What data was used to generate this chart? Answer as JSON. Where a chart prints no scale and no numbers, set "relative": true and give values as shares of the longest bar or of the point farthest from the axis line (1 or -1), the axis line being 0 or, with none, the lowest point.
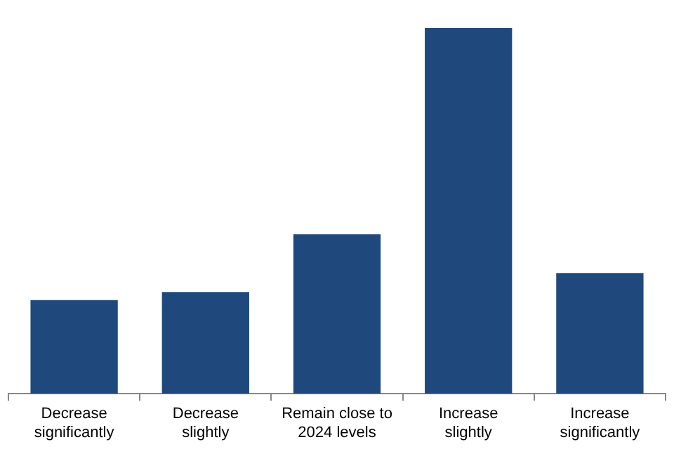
{
  "chart_data": {
    "type": "bar",
    "relative": true,
    "categories": [
      "Decrease significantly",
      "Decrease slightly",
      "Remain close to 2024 levels",
      "Increase slightly",
      "Increase significantly"
    ],
    "values": [
      0.256,
      0.278,
      0.436,
      1,
      0.33
    ],
    "color": "#1f497d",
    "grid": false,
    "legend": false
  }
}
